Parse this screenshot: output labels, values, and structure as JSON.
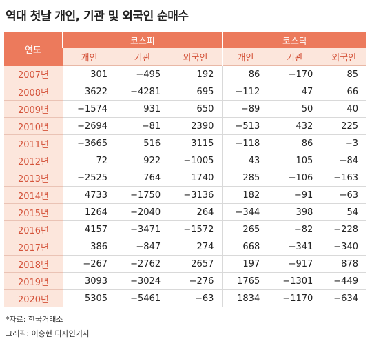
{
  "header": {
    "title": "역대 첫날 개인, 기관 및 외국인 순매수"
  },
  "table": {
    "year_header": "연도",
    "groups": [
      "코스피",
      "코스닥"
    ],
    "columns": [
      "개인",
      "기관",
      "외국인",
      "개인",
      "기관",
      "외국인"
    ],
    "rows": [
      [
        "2007년",
        "301",
        "−495",
        "192",
        "86",
        "−170",
        "85"
      ],
      [
        "2008년",
        "3622",
        "−4281",
        "695",
        "−112",
        "47",
        "66"
      ],
      [
        "2009년",
        "−1574",
        "931",
        "650",
        "−89",
        "50",
        "40"
      ],
      [
        "2010년",
        "−2694",
        "−81",
        "2390",
        "−513",
        "432",
        "225"
      ],
      [
        "2011년",
        "−3665",
        "516",
        "3115",
        "−118",
        "86",
        "−3"
      ],
      [
        "2012년",
        "72",
        "922",
        "−1005",
        "43",
        "105",
        "−84"
      ],
      [
        "2013년",
        "−2525",
        "764",
        "1740",
        "285",
        "−106",
        "−163"
      ],
      [
        "2014년",
        "4733",
        "−1750",
        "−3136",
        "182",
        "−91",
        "−63"
      ],
      [
        "2015년",
        "1264",
        "−2040",
        "264",
        "−344",
        "398",
        "54"
      ],
      [
        "2016년",
        "4157",
        "−3471",
        "−1572",
        "265",
        "−82",
        "−228"
      ],
      [
        "2017년",
        "386",
        "−847",
        "274",
        "668",
        "−341",
        "−340"
      ],
      [
        "2018년",
        "−267",
        "−2762",
        "2657",
        "197",
        "−917",
        "878"
      ],
      [
        "2019년",
        "3093",
        "−3024",
        "−276",
        "1765",
        "−1301",
        "−449"
      ],
      [
        "2020년",
        "5305",
        "−5461",
        "−63",
        "1834",
        "−1170",
        "−634"
      ]
    ]
  },
  "footer": {
    "source": "*자료: 한국거래소",
    "credit": "그래픽: 이승현 디자인기자"
  }
}
